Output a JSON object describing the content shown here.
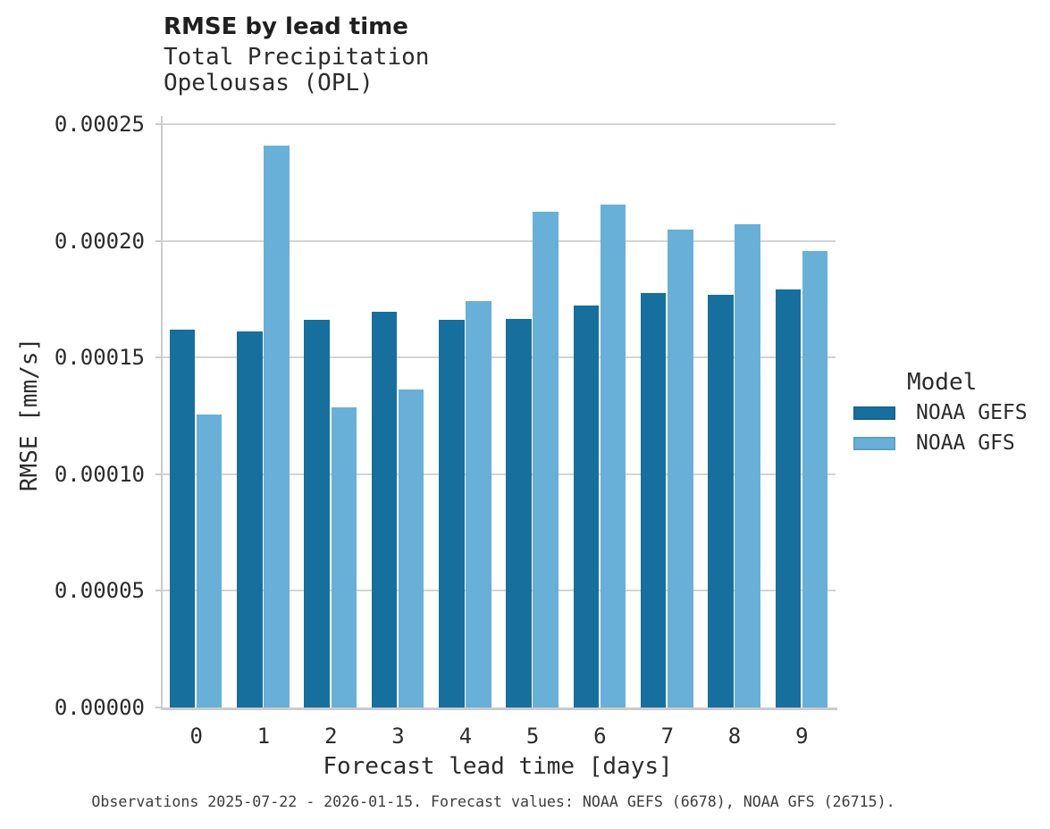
{
  "colors": {
    "gefs_bar": "#176f9e",
    "gfs_bar": "#69b0d8",
    "gridline": "#d4d4d4",
    "axis": "#cbcbcb",
    "title_text": "#1f1f1f",
    "body_text": "#2b2b2b",
    "caption_text": "#3c3c3c"
  },
  "caption": "Observations 2025-07-22 - 2026-01-15. Forecast values: NOAA GEFS (6678), NOAA GFS (26715).",
  "chart_data": {
    "type": "bar",
    "title": "RMSE by lead time",
    "subtitle": [
      "Total Precipitation",
      "Opelousas (OPL)"
    ],
    "xlabel": "Forecast lead time [days]",
    "ylabel": "RMSE [mm/s]",
    "categories": [
      "0",
      "1",
      "2",
      "3",
      "4",
      "5",
      "6",
      "7",
      "8",
      "9"
    ],
    "series": [
      {
        "name": "NOAA GEFS",
        "color": "#176f9e",
        "values": [
          0.000162,
          0.0001612,
          0.0001662,
          0.0001696,
          0.000166,
          0.0001665,
          0.0001723,
          0.0001777,
          0.0001768,
          0.0001792
        ]
      },
      {
        "name": "NOAA GFS",
        "color": "#69b0d8",
        "values": [
          0.0001256,
          0.0002408,
          0.0001286,
          0.0001363,
          0.0001743,
          0.0002125,
          0.0002155,
          0.0002048,
          0.0002071,
          0.0001957
        ]
      }
    ],
    "ylim": [
      0,
      0.00025
    ],
    "yticks": [
      {
        "value": 0,
        "label": "0.00000"
      },
      {
        "value": 5e-05,
        "label": "0.00005"
      },
      {
        "value": 0.0001,
        "label": "0.00010"
      },
      {
        "value": 0.00015,
        "label": "0.00015"
      },
      {
        "value": 0.0002,
        "label": "0.00020"
      },
      {
        "value": 0.00025,
        "label": "0.00025"
      }
    ],
    "grid": true,
    "legend": {
      "title": "Model",
      "position": "right-center"
    }
  }
}
